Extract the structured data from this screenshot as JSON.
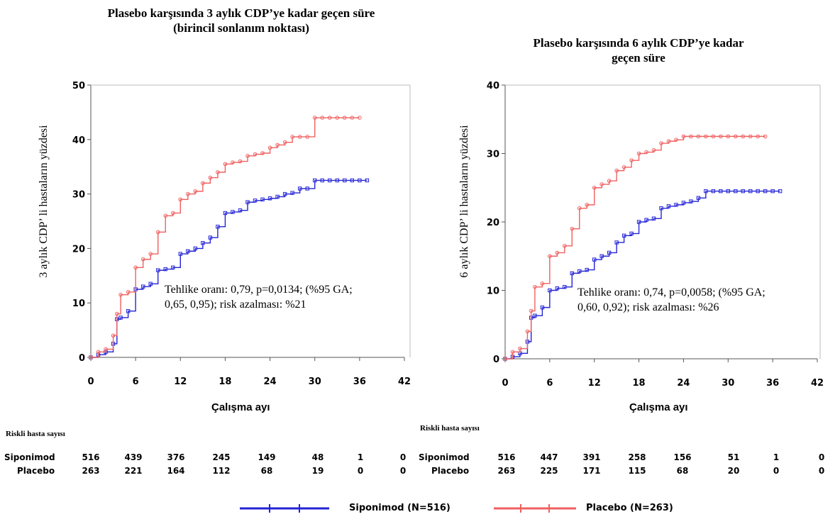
{
  "risk_title": "Riskli hasta sayısı",
  "chart_data": [
    {
      "type": "line",
      "title": "Plasebo karşısında 3 aylık CDP’ye kadar geçen süre\n(birincil sonlanım noktası)",
      "xlabel": "Çalışma ayı",
      "ylabel": "3 aylık CDP’ li hastaların yüzdesi",
      "xlim": [
        0,
        42
      ],
      "ylim": [
        0,
        50
      ],
      "xticks": [
        0,
        6,
        12,
        18,
        24,
        30,
        36,
        42
      ],
      "yticks": [
        0,
        10,
        20,
        30,
        40,
        50
      ],
      "annotation": [
        "Tehlike oranı: 0,79, p=0,0134; (%95 GA;",
        "0,65, 0,95); risk azalması: %21"
      ],
      "series": [
        {
          "name": "Siponimod (N=516)",
          "color": "#2323d6",
          "x": [
            0,
            1,
            2,
            3,
            3.5,
            4,
            5,
            6,
            7,
            8,
            9,
            10,
            11,
            12,
            13,
            14,
            15,
            16,
            17,
            18,
            19,
            20,
            21,
            22,
            23,
            24,
            25,
            26,
            27,
            28,
            29,
            30,
            31,
            32,
            33,
            34,
            35,
            36,
            37
          ],
          "y": [
            0,
            0.5,
            1,
            2.5,
            7,
            7.3,
            8.5,
            12.5,
            13,
            13.5,
            16,
            16.2,
            16.5,
            19,
            19.5,
            20,
            21,
            22,
            24,
            26.5,
            26.7,
            27,
            28.5,
            28.8,
            29,
            29.2,
            29.5,
            30,
            30.2,
            31,
            31,
            32.5,
            32.5,
            32.5,
            32.5,
            32.5,
            32.5,
            32.5,
            32.5
          ]
        },
        {
          "name": "Placebo (N=263)",
          "color": "#f06060",
          "x": [
            0,
            1,
            2,
            3,
            3.5,
            4,
            5,
            6,
            7,
            8,
            9,
            10,
            11,
            12,
            13,
            14,
            15,
            16,
            17,
            18,
            19,
            20,
            21,
            22,
            23,
            24,
            25,
            26,
            27,
            28,
            29,
            30,
            31,
            32,
            33,
            34,
            35,
            36
          ],
          "y": [
            0,
            1,
            1.5,
            4,
            8,
            11.5,
            12,
            16.5,
            18,
            19,
            23,
            26,
            26.5,
            29,
            30,
            30.5,
            32,
            33,
            34,
            35.5,
            35.8,
            36,
            37,
            37.3,
            37.5,
            38.5,
            39,
            39.5,
            40.5,
            40.5,
            40.5,
            44,
            44,
            44,
            44,
            44,
            44,
            44
          ]
        }
      ],
      "risk_table": {
        "rows": [
          {
            "label": "Siponimod",
            "values": [
              "516",
              "439",
              "376",
              "245",
              "149",
              "48",
              "1",
              "0"
            ]
          },
          {
            "label": "Placebo",
            "values": [
              "263",
              "221",
              "164",
              "112",
              "68",
              "19",
              "0",
              "0"
            ]
          }
        ]
      }
    },
    {
      "type": "line",
      "title": "Plasebo karşısında 6 aylık CDP’ye kadar\ngeçen süre",
      "xlabel": "Çalışma ayı",
      "ylabel": "6 aylık CDP’ li hastaların yüzdesi",
      "xlim": [
        0,
        42
      ],
      "ylim": [
        0,
        40
      ],
      "xticks": [
        0,
        6,
        12,
        18,
        24,
        30,
        36,
        42
      ],
      "yticks": [
        0,
        10,
        20,
        30,
        40
      ],
      "annotation": [
        "Tehlike oranı: 0,74, p=0,0058; (%95 GA;",
        "0,60, 0,92); risk azalması: %26"
      ],
      "series": [
        {
          "name": "Siponimod (N=516)",
          "color": "#2323d6",
          "x": [
            0,
            1,
            2,
            3,
            3.5,
            4,
            5,
            6,
            7,
            8,
            9,
            10,
            11,
            12,
            13,
            14,
            15,
            16,
            17,
            18,
            19,
            20,
            21,
            22,
            23,
            24,
            25,
            26,
            27,
            28,
            29,
            30,
            31,
            32,
            33,
            34,
            35,
            36,
            37
          ],
          "y": [
            0,
            0.3,
            0.8,
            2.5,
            6,
            6.3,
            7.5,
            10,
            10.3,
            10.5,
            12.5,
            12.8,
            13,
            14.5,
            15,
            15.5,
            17,
            18,
            18.3,
            20,
            20.3,
            20.5,
            22,
            22.3,
            22.5,
            22.8,
            23,
            23.5,
            24.5,
            24.5,
            24.5,
            24.5,
            24.5,
            24.5,
            24.5,
            24.5,
            24.5,
            24.5,
            24.5
          ]
        },
        {
          "name": "Placebo (N=263)",
          "color": "#f06060",
          "x": [
            0,
            1,
            2,
            3,
            3.5,
            4,
            5,
            6,
            7,
            8,
            9,
            10,
            11,
            12,
            13,
            14,
            15,
            16,
            17,
            18,
            19,
            20,
            21,
            22,
            23,
            24,
            25,
            26,
            27,
            28,
            29,
            30,
            31,
            32,
            33,
            34,
            35
          ],
          "y": [
            0,
            1,
            1.5,
            4,
            7,
            10.5,
            11,
            15,
            15.5,
            16.5,
            19,
            22,
            22.5,
            25,
            25.5,
            26,
            27.5,
            28,
            29,
            30,
            30.2,
            30.5,
            31.5,
            31.8,
            32,
            32.5,
            32.5,
            32.5,
            32.5,
            32.5,
            32.5,
            32.5,
            32.5,
            32.5,
            32.5,
            32.5,
            32.5
          ]
        }
      ],
      "risk_table": {
        "rows": [
          {
            "label": "Siponimod",
            "values": [
              "516",
              "447",
              "391",
              "258",
              "156",
              "51",
              "1",
              "0"
            ]
          },
          {
            "label": "Placebo",
            "values": [
              "263",
              "225",
              "171",
              "115",
              "68",
              "20",
              "0",
              "0"
            ]
          }
        ]
      }
    }
  ],
  "legend": [
    {
      "label": "Siponimod (N=516)",
      "color": "#2323d6"
    },
    {
      "label": "Placebo (N=263)",
      "color": "#f06060"
    }
  ]
}
